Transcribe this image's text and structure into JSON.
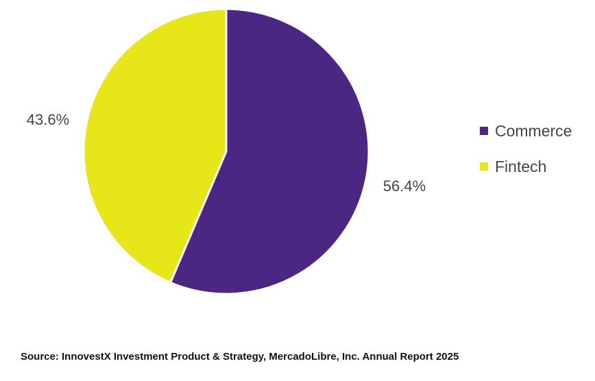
{
  "chart_data": {
    "type": "pie",
    "categories": [
      "Commerce",
      "Fintech"
    ],
    "values": [
      56.4,
      43.6
    ],
    "labels": [
      "56.4%",
      "43.6%"
    ],
    "colors": [
      "#4b2682",
      "#e6e619"
    ],
    "start": "12 o'clock, clockwise",
    "legend": "right"
  },
  "source": "Source: InnovestX Investment Product & Strategy, MercadoLibre, Inc. Annual Report 2025"
}
